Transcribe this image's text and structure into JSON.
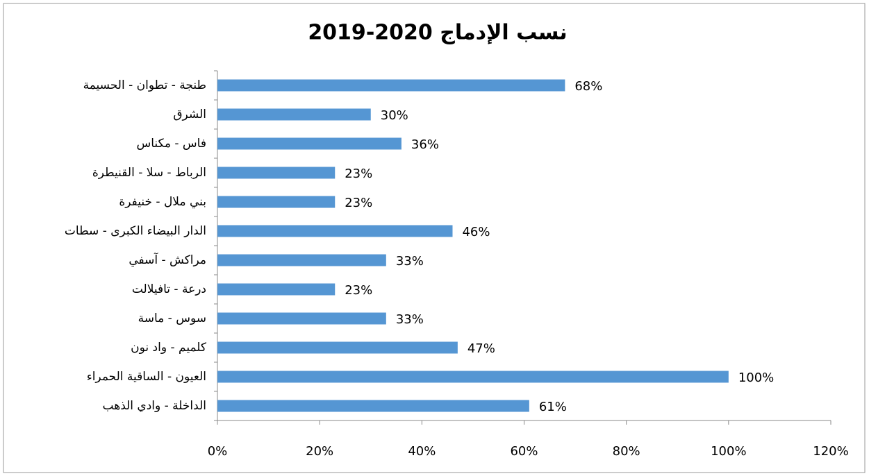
{
  "chart_data": {
    "type": "bar",
    "orientation": "horizontal",
    "title": "نسب الإدماج 2020-2019",
    "categories": [
      "طنجة - تطوان - الحسيمة",
      "الشرق",
      "فاس - مكناس",
      "الرباط - سلا - القنيطرة",
      "بني ملال - خنيفرة",
      "الدار البيضاء الكبرى - سطات",
      "مراكش - آسفي",
      "درعة - تافيلالت",
      "سوس - ماسة",
      "كلميم - واد نون",
      "العيون - الساقية الحمراء",
      "الداخلة - وادي الذهب"
    ],
    "values": [
      68,
      30,
      36,
      23,
      23,
      46,
      33,
      23,
      33,
      47,
      100,
      61
    ],
    "value_labels": [
      "68%",
      "30%",
      "36%",
      "23%",
      "23%",
      "46%",
      "33%",
      "23%",
      "33%",
      "47%",
      "100%",
      "61%"
    ],
    "color": "#5596d3",
    "xlim": [
      0,
      120
    ],
    "xticks": [
      {
        "value": 0,
        "label": "0%"
      },
      {
        "value": 20,
        "label": "20%"
      },
      {
        "value": 40,
        "label": "40%"
      },
      {
        "value": 60,
        "label": "60%"
      },
      {
        "value": 80,
        "label": "80%"
      },
      {
        "value": 100,
        "label": "100%"
      },
      {
        "value": 120,
        "label": "120%"
      }
    ],
    "grid": false
  }
}
